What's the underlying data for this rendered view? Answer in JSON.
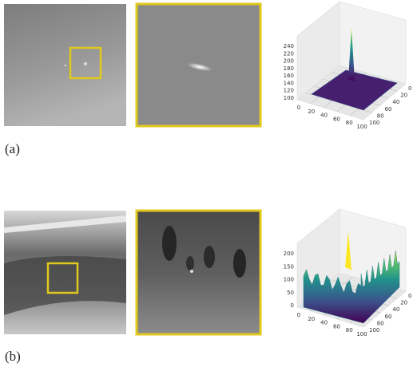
{
  "figure": {
    "panels": [
      {
        "label": "(a)",
        "plot": {
          "zticks": [
            100,
            120,
            140,
            160,
            180,
            200,
            220,
            240
          ],
          "xticks": [
            0,
            20,
            40,
            60,
            80,
            100
          ],
          "yticks": [
            0,
            20,
            40,
            60,
            80,
            100
          ]
        }
      },
      {
        "label": "(b)",
        "plot": {
          "zticks": [
            0,
            50,
            100,
            150,
            200
          ],
          "xticks": [
            0,
            20,
            40,
            60,
            80,
            100
          ],
          "yticks": [
            0,
            20,
            40,
            60,
            80,
            100
          ]
        }
      }
    ]
  }
}
